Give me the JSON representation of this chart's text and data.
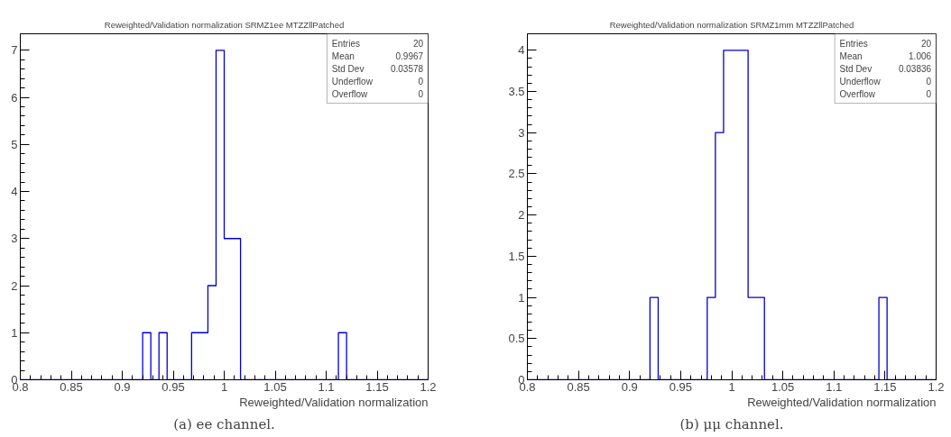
{
  "chart_data": [
    {
      "type": "histogram",
      "title": "Reweighted/Validation normalization SRMZ1ee MTZZllPatched",
      "xlabel": "Reweighted/Validation normalization",
      "bins": [
        0.8,
        0.808,
        0.816,
        0.824,
        0.832,
        0.84,
        0.848,
        0.856,
        0.864,
        0.872,
        0.88,
        0.888,
        0.896,
        0.904,
        0.912,
        0.92,
        0.928,
        0.936,
        0.944,
        0.952,
        0.96,
        0.968,
        0.976,
        0.984,
        0.992,
        1.0,
        1.008,
        1.016,
        1.024,
        1.032,
        1.04,
        1.048,
        1.056,
        1.064,
        1.072,
        1.08,
        1.088,
        1.096,
        1.104,
        1.112,
        1.12,
        1.128,
        1.136,
        1.144,
        1.152,
        1.16,
        1.168,
        1.176,
        1.184,
        1.192,
        1.2
      ],
      "values": [
        0,
        0,
        0,
        0,
        0,
        0,
        0,
        0,
        0,
        0,
        0,
        0,
        0,
        0,
        0,
        1,
        0,
        1,
        0,
        0,
        0,
        1,
        1,
        2,
        7,
        3,
        3,
        0,
        0,
        0,
        0,
        0,
        0,
        0,
        0,
        0,
        0,
        0,
        0,
        1,
        0,
        0,
        0,
        0,
        0,
        0,
        0,
        0,
        0,
        0
      ],
      "color": "#0000cc",
      "xlim": [
        0.8,
        1.2
      ],
      "ylim": [
        0,
        7.35
      ],
      "xticks": [
        0.8,
        0.85,
        0.9,
        0.95,
        1,
        1.05,
        1.1,
        1.15,
        1.2
      ],
      "yticks": [
        0,
        1,
        2,
        3,
        4,
        5,
        6,
        7
      ],
      "grid": false,
      "annotations": [
        "Entries",
        "20",
        "Mean",
        "0.9967",
        "Std Dev",
        "0.03578",
        "Underflow",
        "0",
        "Overflow",
        "0",
        "(a) ee channel."
      ]
    },
    {
      "type": "histogram",
      "title": "Reweighted/Validation normalization SRMZ1mm MTZZllPatched",
      "xlabel": "Reweighted/Validation normalization",
      "bins": [
        0.8,
        0.808,
        0.816,
        0.824,
        0.832,
        0.84,
        0.848,
        0.856,
        0.864,
        0.872,
        0.88,
        0.888,
        0.896,
        0.904,
        0.912,
        0.92,
        0.928,
        0.936,
        0.944,
        0.952,
        0.96,
        0.968,
        0.976,
        0.984,
        0.992,
        1.0,
        1.008,
        1.016,
        1.024,
        1.032,
        1.04,
        1.048,
        1.056,
        1.064,
        1.072,
        1.08,
        1.088,
        1.096,
        1.104,
        1.112,
        1.12,
        1.128,
        1.136,
        1.144,
        1.152,
        1.16,
        1.168,
        1.176,
        1.184,
        1.192,
        1.2
      ],
      "values": [
        0,
        0,
        0,
        0,
        0,
        0,
        0,
        0,
        0,
        0,
        0,
        0,
        0,
        0,
        0,
        1,
        0,
        0,
        0,
        0,
        0,
        0,
        1,
        3,
        4,
        4,
        4,
        1,
        1,
        0,
        0,
        0,
        0,
        0,
        0,
        0,
        0,
        0,
        0,
        0,
        0,
        0,
        0,
        1,
        0,
        0,
        0,
        0,
        0,
        0
      ],
      "color": "#0000cc",
      "xlim": [
        0.8,
        1.2
      ],
      "ylim": [
        0,
        4.2
      ],
      "xticks": [
        0.8,
        0.85,
        0.9,
        0.95,
        1,
        1.05,
        1.1,
        1.15,
        1.2
      ],
      "yticks": [
        0,
        0.5,
        1,
        1.5,
        2,
        2.5,
        3,
        3.5,
        4
      ],
      "grid": false,
      "annotations": [
        "Entries",
        "20",
        "Mean",
        "1.006",
        "Std Dev",
        "0.03836",
        "Underflow",
        "0",
        "Overflow",
        "0",
        "(b) μμ channel."
      ]
    }
  ]
}
